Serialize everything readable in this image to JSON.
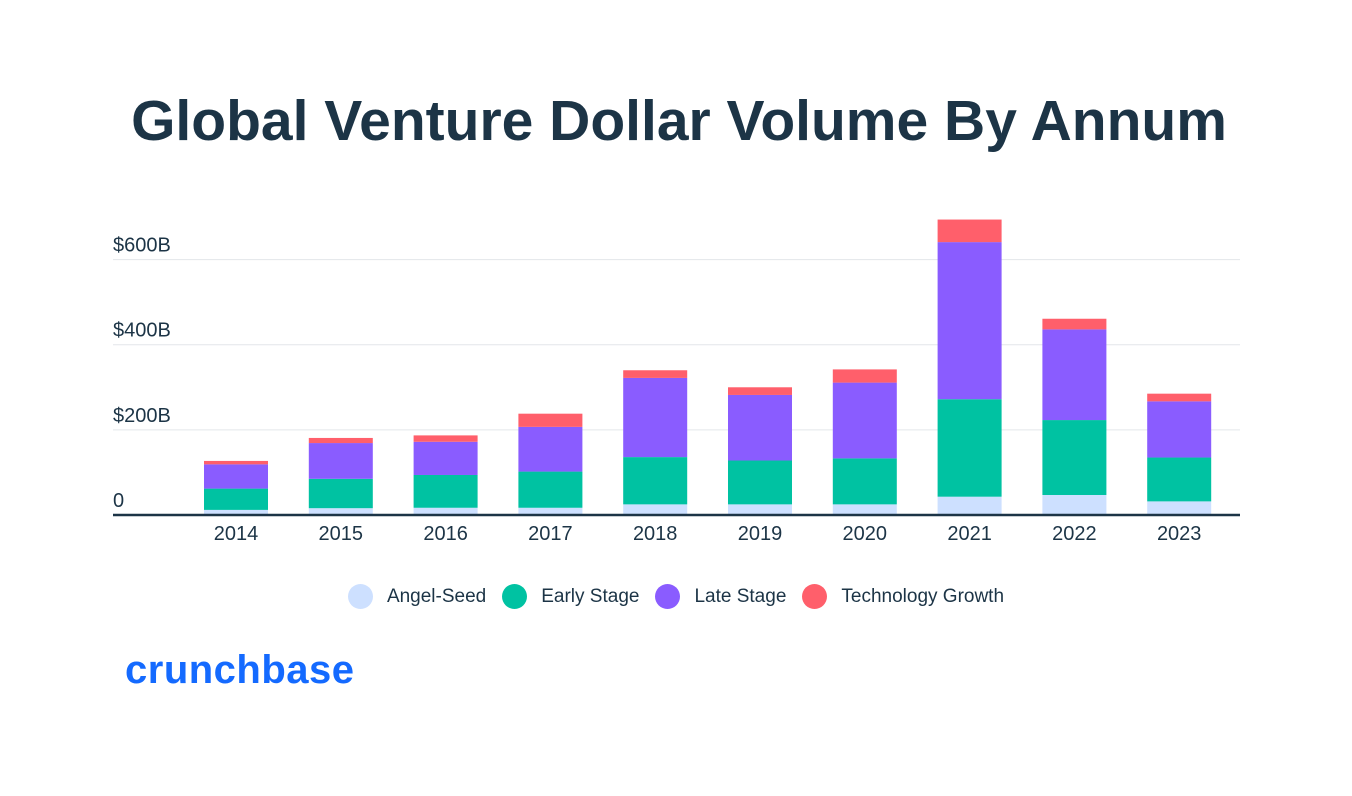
{
  "chart_data": {
    "type": "bar",
    "stacked": true,
    "title": "Global Venture Dollar Volume By Annum",
    "categories": [
      "2014",
      "2015",
      "2016",
      "2017",
      "2018",
      "2019",
      "2020",
      "2021",
      "2022",
      "2023"
    ],
    "series": [
      {
        "name": "Angel-Seed",
        "color": "#cde0ff",
        "values": [
          12,
          16,
          17,
          17,
          25,
          25,
          25,
          43,
          47,
          32
        ]
      },
      {
        "name": "Early Stage",
        "color": "#00c2a2",
        "values": [
          50,
          69,
          77,
          85,
          111,
          103,
          108,
          229,
          176,
          103
        ]
      },
      {
        "name": "Late Stage",
        "color": "#8a5cff",
        "values": [
          57,
          84,
          78,
          105,
          186,
          154,
          178,
          369,
          213,
          132
        ]
      },
      {
        "name": "Technology Growth",
        "color": "#ff5f6b",
        "values": [
          8,
          12,
          15,
          31,
          18,
          18,
          31,
          53,
          25,
          18
        ]
      }
    ],
    "yticks": [
      {
        "value": 0,
        "label": "0"
      },
      {
        "value": 200,
        "label": "$200B"
      },
      {
        "value": 400,
        "label": "$400B"
      },
      {
        "value": 600,
        "label": "$600B"
      }
    ],
    "ylim": [
      0,
      700
    ],
    "xlabel": "",
    "ylabel": "",
    "legend_position": "bottom-center"
  },
  "brand": "crunchbase"
}
